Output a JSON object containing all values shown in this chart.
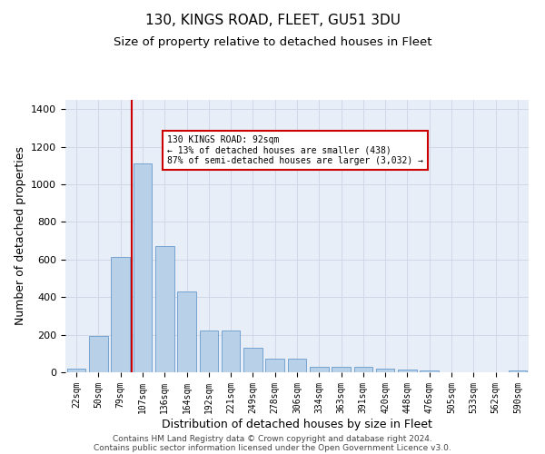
{
  "title": "130, KINGS ROAD, FLEET, GU51 3DU",
  "subtitle": "Size of property relative to detached houses in Fleet",
  "xlabel": "Distribution of detached houses by size in Fleet",
  "ylabel": "Number of detached properties",
  "categories": [
    "22sqm",
    "50sqm",
    "79sqm",
    "107sqm",
    "136sqm",
    "164sqm",
    "192sqm",
    "221sqm",
    "249sqm",
    "278sqm",
    "306sqm",
    "334sqm",
    "363sqm",
    "391sqm",
    "420sqm",
    "448sqm",
    "476sqm",
    "505sqm",
    "533sqm",
    "562sqm",
    "590sqm"
  ],
  "values": [
    18,
    195,
    615,
    1110,
    670,
    430,
    220,
    220,
    130,
    73,
    73,
    30,
    30,
    28,
    18,
    14,
    8,
    0,
    0,
    0,
    12
  ],
  "bar_color": "#b8d0e8",
  "bar_edge_color": "#6699cc",
  "vline_color": "#cc0000",
  "vline_x_index": 2,
  "annotation_text": "130 KINGS ROAD: 92sqm\n← 13% of detached houses are smaller (438)\n87% of semi-detached houses are larger (3,032) →",
  "annotation_box_edgecolor": "#cc0000",
  "ylim": [
    0,
    1450
  ],
  "yticks": [
    0,
    200,
    400,
    600,
    800,
    1000,
    1200,
    1400
  ],
  "grid_color": "#d0d8e8",
  "bg_color": "#e8eef8",
  "footer1": "Contains HM Land Registry data © Crown copyright and database right 2024.",
  "footer2": "Contains public sector information licensed under the Open Government Licence v3.0.",
  "title_fontsize": 11,
  "subtitle_fontsize": 9.5,
  "xlabel_fontsize": 9,
  "ylabel_fontsize": 9,
  "tick_fontsize": 7,
  "ytick_fontsize": 8,
  "annotation_fontsize": 7,
  "footer_fontsize": 6.5
}
